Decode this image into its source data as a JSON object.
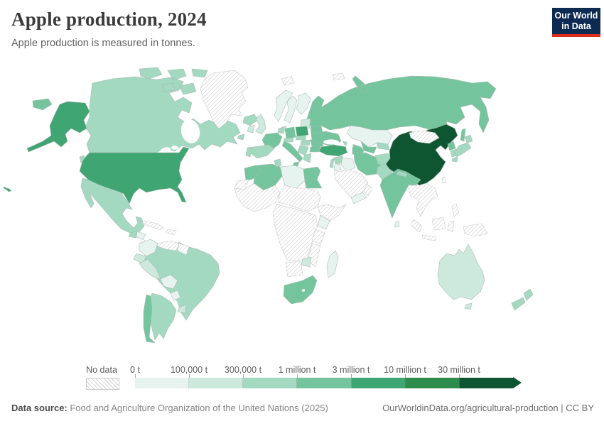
{
  "header": {
    "title": "Apple production, 2024",
    "subtitle": "Apple production is measured in tonnes."
  },
  "logo": {
    "line1": "Our World",
    "line2": "in Data",
    "bg": "#0d2a52",
    "accent": "#dc2d1c"
  },
  "legend": {
    "no_data_label": "No data",
    "tick_labels": [
      "0 t",
      "100,000 t",
      "300,000 t",
      "1 million t",
      "3 million t",
      "10 million t",
      "30 million t"
    ],
    "colors": [
      "#e6f3ef",
      "#cde8dc",
      "#a3d9c1",
      "#74c59d",
      "#3fa572",
      "#2d8c4b",
      "#0e5631"
    ]
  },
  "footer": {
    "source_label": "Data source:",
    "source_text": " Food and Agriculture Organization of the United Nations (2025)",
    "right_text": "OurWorldinData.org/agricultural-production | CC BY"
  },
  "map": {
    "ocean": "#ffffff",
    "border_color": "#a9b8b1",
    "no_data_border": "#c6c6c6",
    "hatch_line_color": "#c9c9c9",
    "countries": {
      "russia": 4,
      "canada": 3,
      "greenland": "no_data",
      "arctic-islands": "no_data",
      "iceland": 3,
      "usa": 5,
      "mexico": 3,
      "guatemala": 3,
      "honduras": 1,
      "nicaragua": "no_data",
      "costa-rica-panama": "no_data",
      "cuba": "no_data",
      "hispaniola": "no_data",
      "brazil": 3,
      "colombia": 1,
      "venezuela": "no_data",
      "guyanas": "no_data",
      "ecuador": 2,
      "peru": 2,
      "bolivia": 1,
      "paraguay": 1,
      "uruguay": 2,
      "argentina": 3,
      "chile": 4,
      "norway": 1,
      "sweden": 1,
      "finland": 1,
      "denmark": 2,
      "united-kingdom": 2,
      "ireland": 2,
      "baltics": 2,
      "belarus": 4,
      "poland": 5,
      "germany": 4,
      "benelux": 3,
      "france": 4,
      "spain": 3,
      "portugal": 3,
      "alpine": 3,
      "czechia-slovakia": 3,
      "italy": 4,
      "hungary": 3,
      "romania": 4,
      "balkans": 3,
      "bulgaria": 4,
      "greece": 3,
      "ukraine": 4,
      "kazakhstan": 1,
      "uzbekistan": 4,
      "turkmenistan": 4,
      "kyrgyzstan-tajikistan": 3,
      "caucasus": 3,
      "turkey": 5,
      "syria": 3,
      "levant": 3,
      "jordan": 1,
      "iraq": 1,
      "saudi-arabia": "no_data",
      "yemen": 1,
      "oman": "no_data",
      "iran": 4,
      "afghanistan": 3,
      "pakistan": 3,
      "india": 4,
      "nepal": 3,
      "sri-lanka": 1,
      "china": 7,
      "mongolia": "no_data",
      "taiwan": "no_data",
      "north-korea": 4,
      "south-korea": 3,
      "japan": 3,
      "se-asia": "no_data",
      "philippines": "no_data",
      "indonesia": "no_data",
      "new-guinea": "no_data",
      "morocco": 4,
      "western-sahara": "no_data",
      "algeria": 4,
      "tunisia": 3,
      "libya": 1,
      "egypt": 4,
      "west-africa": "no_data",
      "sahel-sudan": "no_data",
      "central-africa": "no_data",
      "horn-of-africa": "no_data",
      "kenya": 1,
      "tanzania": "no_data",
      "mozambique": "no_data",
      "zimbabwe": 2,
      "namibia-botswana": "no_data",
      "south-africa": 4,
      "madagascar": 1,
      "australia": 2,
      "new-zealand": 3
    }
  },
  "chart_data": {
    "type": "heatmap",
    "subtype": "choropleth-world-map",
    "title": "Apple production, 2024",
    "subtitle": "Apple production is measured in tonnes.",
    "unit": "tonnes",
    "legend_position": "bottom",
    "bins": [
      "0 t",
      "100,000 t",
      "300,000 t",
      "1 million t",
      "3 million t",
      "10 million t",
      "30 million t"
    ],
    "bin_colors": [
      "#e6f3ef",
      "#cde8dc",
      "#a3d9c1",
      "#74c59d",
      "#3fa572",
      "#2d8c4b",
      "#0e5631"
    ],
    "no_data_style": "gray-diagonal-hatch",
    "region_bins": {
      "China": "30 million t +",
      "United States": "3-10 million t",
      "Turkey": "3-10 million t",
      "Poland": "3-10 million t",
      "India": "1-3 million t",
      "Russia": "1-3 million t",
      "Iran": "1-3 million t",
      "France": "1-3 million t",
      "Italy": "1-3 million t",
      "Germany": "1-3 million t",
      "Ukraine": "1-3 million t",
      "Chile": "1-3 million t",
      "Uzbekistan": "1-3 million t",
      "Egypt": "1-3 million t",
      "Morocco": "1-3 million t",
      "Algeria": "1-3 million t",
      "South Africa": "1-3 million t",
      "Canada": "300,000-1 million t",
      "Mexico": "300,000-1 million t",
      "Brazil": "300,000-1 million t",
      "Argentina": "300,000-1 million t",
      "Spain": "300,000-1 million t",
      "Japan": "300,000-1 million t",
      "New Zealand": "300,000-1 million t",
      "Iceland": "300,000-1 million t",
      "United Kingdom": "100,000-300,000 t",
      "Australia": "100,000-300,000 t",
      "Peru": "100,000-300,000 t",
      "Ecuador": "100,000-300,000 t",
      "Zimbabwe": "100,000-300,000 t",
      "Norway": "0-100,000 t",
      "Kazakhstan": "0-100,000 t",
      "Libya": "0-100,000 t",
      "Colombia": "0-100,000 t",
      "Kenya": "0-100,000 t",
      "Madagascar": "0-100,000 t",
      "Greenland": "No data",
      "Mongolia": "No data",
      "Saudi Arabia": "No data",
      "Southeast Asia": "No data",
      "Indonesia": "No data",
      "Most of Sub-Saharan Africa": "No data",
      "Venezuela": "No data"
    }
  }
}
